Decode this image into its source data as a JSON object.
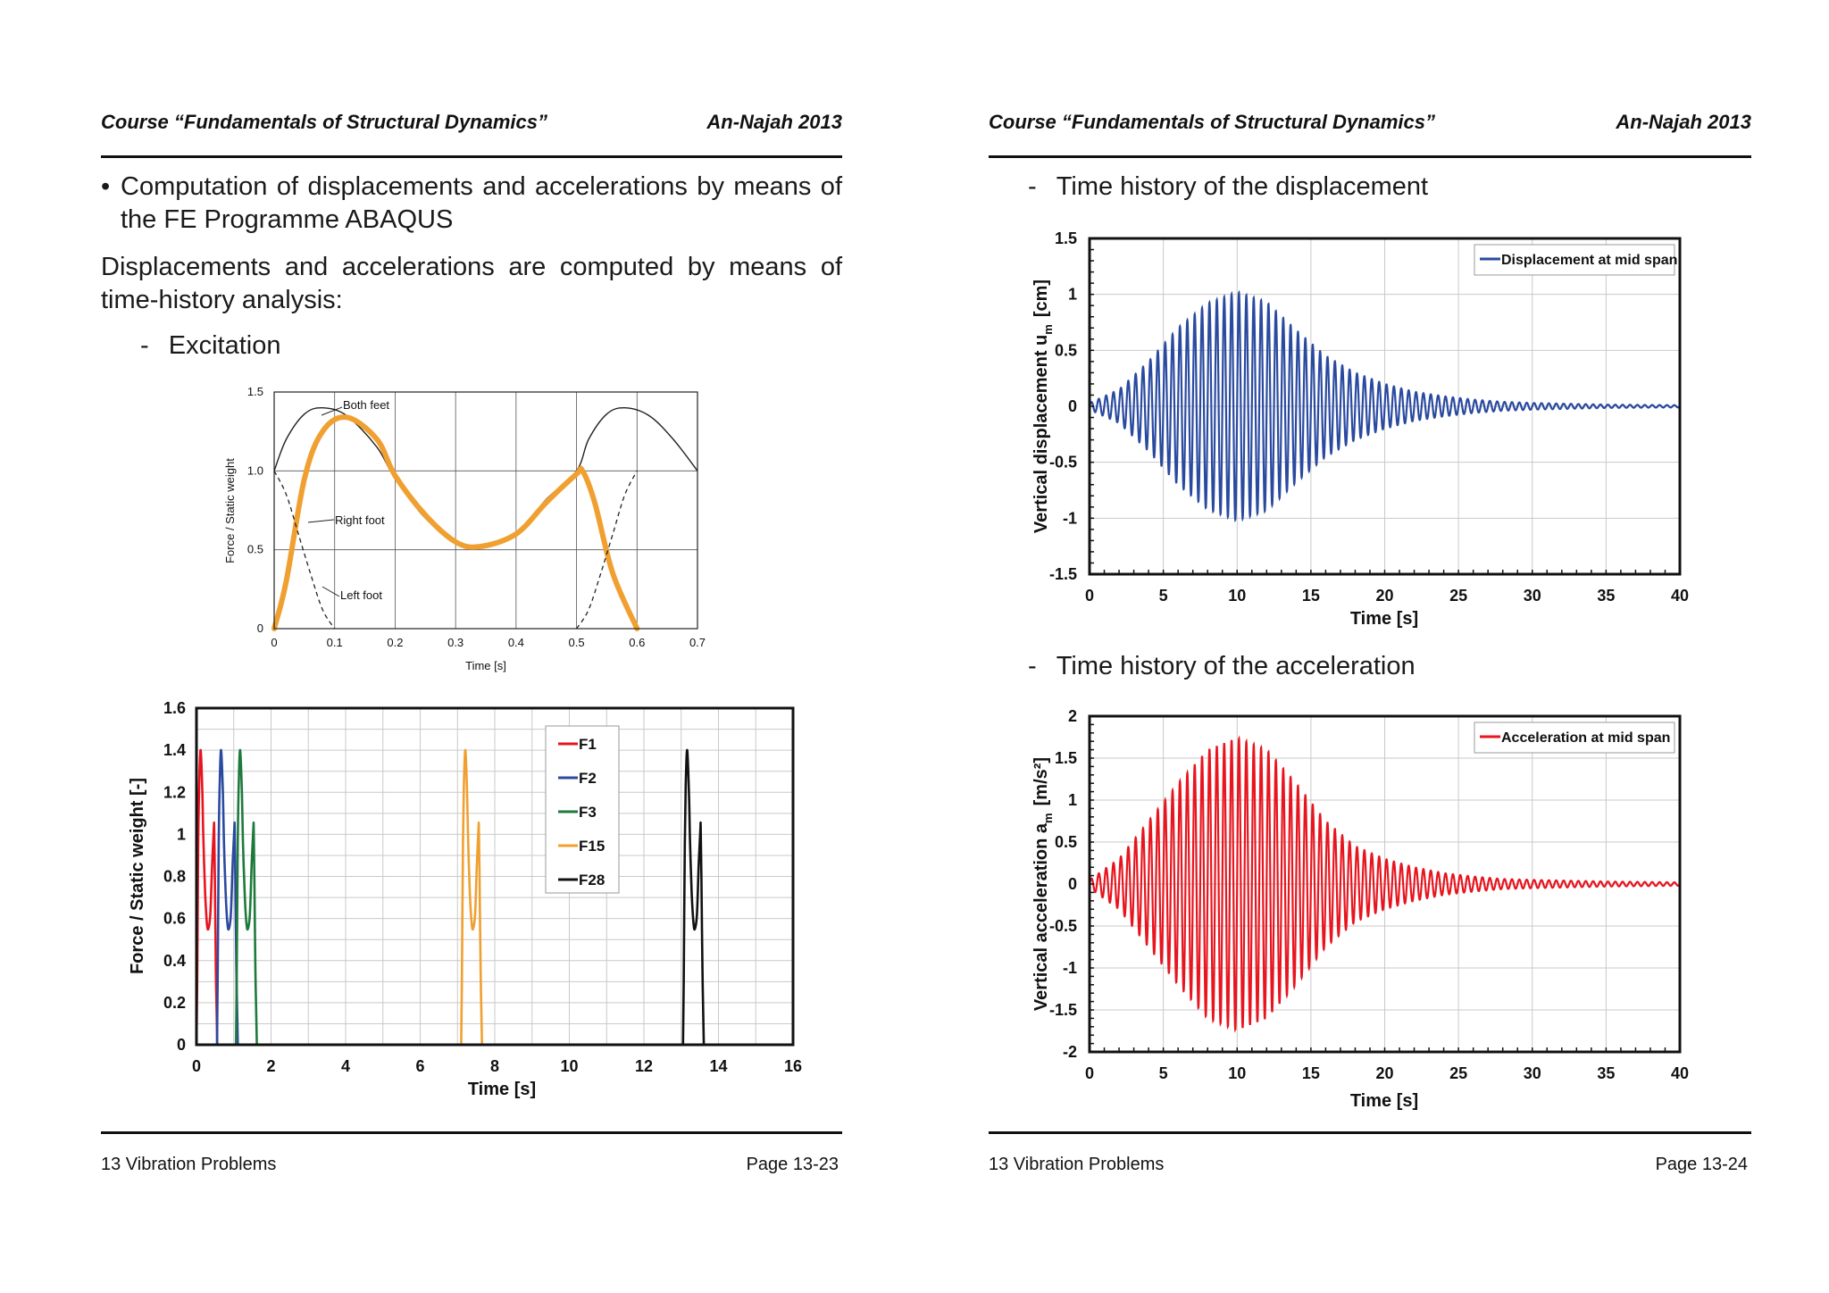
{
  "left_page": {
    "header": {
      "course": "Course “Fundamentals of Structural Dynamics”",
      "institution": "An-Najah 2013"
    },
    "bullet": {
      "marker": "•",
      "line1": "Computation of displacements and accelerations by means of",
      "line2": "the FE Programme ABAQUS"
    },
    "paragraph": {
      "line1": "Displacements and accelerations are computed by means of",
      "line2": "time-history analysis:"
    },
    "dash_item": {
      "marker": "-",
      "text": "Excitation"
    },
    "footer": {
      "chapter": "13 Vibration Problems",
      "page": "Page 13-23"
    }
  },
  "right_page": {
    "header": {
      "course": "Course “Fundamentals of Structural Dynamics”",
      "institution": "An-Najah 2013"
    },
    "dash_item_1": {
      "marker": "-",
      "text": "Time history of the displacement"
    },
    "dash_item_2": {
      "marker": "-",
      "text": "Time history of the acceleration"
    },
    "footer": {
      "chapter": "13 Vibration Problems",
      "page": "Page 13-24"
    }
  },
  "colors": {
    "orange": "#f0a030",
    "red": "#e8141e",
    "blue": "#2a4aa0",
    "green": "#1e7a3c",
    "black": "#111111"
  },
  "chart_data": [
    {
      "id": "excitation",
      "type": "line",
      "xlabel": "Time [s]",
      "ylabel": "Force / Static weight",
      "xlim": [
        0,
        0.7
      ],
      "ylim": [
        0,
        1.5
      ],
      "x_ticks": [
        "0",
        "0.1",
        "0.2",
        "0.3",
        "0.4",
        "0.5",
        "0.6",
        "0.7"
      ],
      "y_ticks": [
        "0",
        "0.5",
        "1.0",
        "1.5"
      ],
      "grid": true,
      "annotations": [
        "Both feet",
        "Right foot",
        "Left foot"
      ],
      "series": [
        {
          "name": "Both feet",
          "style": "solid",
          "x": [
            0,
            0.02,
            0.05,
            0.08,
            0.12,
            0.17,
            0.2,
            0.25,
            0.3,
            0.34,
            0.4,
            0.45,
            0.5,
            0.52,
            0.55,
            0.58,
            0.62,
            0.66,
            0.7
          ],
          "y": [
            1.0,
            1.2,
            1.36,
            1.4,
            1.35,
            1.15,
            0.95,
            0.7,
            0.55,
            0.52,
            0.6,
            0.82,
            1.0,
            1.2,
            1.36,
            1.4,
            1.35,
            1.2,
            1.0
          ]
        },
        {
          "name": "Right foot",
          "style": "bold",
          "x": [
            0,
            0.02,
            0.05,
            0.08,
            0.12,
            0.17,
            0.2,
            0.25,
            0.3,
            0.34,
            0.4,
            0.45,
            0.5,
            0.51,
            0.53,
            0.56,
            0.6
          ],
          "y": [
            0,
            0.3,
            0.95,
            1.25,
            1.34,
            1.2,
            0.97,
            0.72,
            0.55,
            0.52,
            0.6,
            0.8,
            0.98,
            1.0,
            0.8,
            0.35,
            0
          ]
        },
        {
          "name": "Left foot",
          "style": "dashed",
          "x": [
            0,
            0.02,
            0.04,
            0.06,
            0.08,
            0.1
          ],
          "y": [
            1.0,
            0.85,
            0.6,
            0.35,
            0.12,
            0
          ]
        },
        {
          "name": "Left foot (next step)",
          "style": "dashed",
          "x": [
            0.5,
            0.52,
            0.54,
            0.56,
            0.58,
            0.6
          ],
          "y": [
            0,
            0.12,
            0.35,
            0.6,
            0.85,
            1.0
          ]
        }
      ]
    },
    {
      "id": "steps",
      "type": "line",
      "xlabel": "Time [s]",
      "ylabel": "Force / Static weight  [-]",
      "xlim": [
        0,
        16
      ],
      "ylim": [
        0,
        1.6
      ],
      "x_ticks": [
        "0",
        "2",
        "4",
        "6",
        "8",
        "10",
        "12",
        "14",
        "16"
      ],
      "y_ticks": [
        "0",
        "0.2",
        "0.4",
        "0.6",
        "0.8",
        "1",
        "1.2",
        "1.4",
        "1.6"
      ],
      "grid": true,
      "legend": "top-right",
      "step_shape": {
        "relative_time": [
          0,
          0.02,
          0.05,
          0.08,
          0.12,
          0.17,
          0.2,
          0.25,
          0.3,
          0.34,
          0.4,
          0.45,
          0.5,
          0.51,
          0.53,
          0.56,
          0.6
        ],
        "force": [
          0,
          0.3,
          0.95,
          1.25,
          1.4,
          1.2,
          0.97,
          0.72,
          0.58,
          0.55,
          0.62,
          0.85,
          1.03,
          1.03,
          0.8,
          0.35,
          0
        ]
      },
      "series": [
        {
          "name": "F1",
          "color": "#e8141e",
          "t0": 0,
          "scale": 0.93
        },
        {
          "name": "F2",
          "color": "#2a4aa0",
          "t0": 0.55,
          "scale": 0.93
        },
        {
          "name": "F3",
          "color": "#1e7a3c",
          "t0": 1.06,
          "scale": 0.93
        },
        {
          "name": "F15",
          "color": "#f0a030",
          "t0": 7.1,
          "scale": 0.93
        },
        {
          "name": "F28",
          "color": "#111111",
          "t0": 13.05,
          "scale": 0.93
        }
      ]
    },
    {
      "id": "displacement",
      "type": "line",
      "xlabel": "Time [s]",
      "ylabel": "Vertical displacement  u",
      "ylabel_subscript": "m",
      "ylabel_unit": "[cm]",
      "xlim": [
        0,
        40
      ],
      "ylim": [
        -1.5,
        1.5
      ],
      "x_ticks": [
        "0",
        "5",
        "10",
        "15",
        "20",
        "25",
        "30",
        "35",
        "40"
      ],
      "y_ticks": [
        "-1.5",
        "-1",
        "-0.5",
        "0",
        "0.5",
        "1",
        "1.5"
      ],
      "grid": true,
      "legend": "top-right",
      "series": [
        {
          "name": "Displacement at mid span",
          "color": "#2a4aa0",
          "frequency_hz": 2.0,
          "envelope_t": [
            0,
            2,
            4,
            6,
            8,
            10,
            12,
            14,
            16,
            18,
            20,
            22,
            24,
            26,
            28,
            30,
            35,
            40
          ],
          "envelope_amp": [
            0.03,
            0.15,
            0.4,
            0.7,
            0.92,
            1.02,
            0.93,
            0.68,
            0.45,
            0.3,
            0.2,
            0.13,
            0.09,
            0.06,
            0.04,
            0.03,
            0.015,
            0.01
          ]
        }
      ]
    },
    {
      "id": "acceleration",
      "type": "line",
      "xlabel": "Time [s]",
      "ylabel": "Vertical acceleration  a",
      "ylabel_subscript": "m",
      "ylabel_unit": "[m/s²]",
      "xlim": [
        0,
        40
      ],
      "ylim": [
        -2,
        2
      ],
      "x_ticks": [
        "0",
        "5",
        "10",
        "15",
        "20",
        "25",
        "30",
        "35",
        "40"
      ],
      "y_ticks": [
        "-2",
        "-1.5",
        "-1",
        "-0.5",
        "0",
        "0.5",
        "1",
        "1.5",
        "2"
      ],
      "grid": true,
      "legend": "top-right",
      "series": [
        {
          "name": "Acceleration at mid span",
          "color": "#e8141e",
          "frequency_hz": 2.0,
          "envelope_t": [
            0,
            2,
            4,
            6,
            8,
            10,
            12,
            14,
            16,
            18,
            20,
            22,
            24,
            26,
            28,
            30,
            35,
            40
          ],
          "envelope_amp": [
            0.05,
            0.3,
            0.75,
            1.2,
            1.6,
            1.74,
            1.6,
            1.2,
            0.75,
            0.45,
            0.3,
            0.2,
            0.13,
            0.09,
            0.06,
            0.05,
            0.03,
            0.02
          ]
        }
      ]
    }
  ]
}
